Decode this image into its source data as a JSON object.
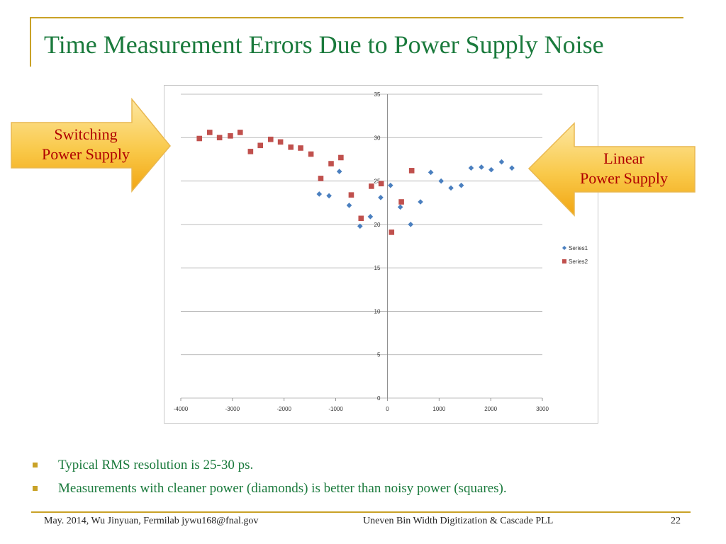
{
  "slide": {
    "title": "Time Measurement Errors Due to Power Supply Noise",
    "accent_color": "#c9a227",
    "title_color": "#1a7a3c"
  },
  "callouts": {
    "switching": {
      "line1": "Switching",
      "line2": "Power Supply"
    },
    "linear": {
      "line1": "Linear",
      "line2": "Power Supply"
    }
  },
  "bullets": [
    "Typical RMS resolution is 25-30 ps.",
    "Measurements with cleaner power (diamonds) is better than noisy power (squares)."
  ],
  "footer": {
    "left": "May. 2014, Wu Jinyuan, Fermilab jywu168@fnal.gov",
    "center": "Uneven Bin Width Digitization & Cascade PLL",
    "page": "22"
  },
  "chart_data": {
    "type": "scatter",
    "xlim": [
      -4000,
      3000
    ],
    "ylim": [
      0,
      35
    ],
    "x_ticks": [
      -4000,
      -3000,
      -2000,
      -1000,
      0,
      1000,
      2000,
      3000
    ],
    "y_ticks": [
      0,
      5,
      10,
      15,
      20,
      25,
      30,
      35
    ],
    "grid": "horizontal",
    "legend_position": "right",
    "series": [
      {
        "name": "Series1",
        "marker": "diamond",
        "color": "#4a7fbf",
        "points": [
          [
            -1320,
            23.5
          ],
          [
            -1130,
            23.3
          ],
          [
            -930,
            26.1
          ],
          [
            -740,
            22.2
          ],
          [
            -530,
            19.8
          ],
          [
            -330,
            20.9
          ],
          [
            -130,
            23.1
          ],
          [
            60,
            24.5
          ],
          [
            250,
            22.0
          ],
          [
            450,
            20.0
          ],
          [
            640,
            22.6
          ],
          [
            840,
            26.0
          ],
          [
            1040,
            25.0
          ],
          [
            1230,
            24.2
          ],
          [
            1430,
            24.5
          ],
          [
            1620,
            26.5
          ],
          [
            1820,
            26.6
          ],
          [
            2010,
            26.3
          ],
          [
            2210,
            27.2
          ],
          [
            2410,
            26.5
          ]
        ]
      },
      {
        "name": "Series2",
        "marker": "square",
        "color": "#c0504d",
        "points": [
          [
            -3640,
            29.9
          ],
          [
            -3440,
            30.6
          ],
          [
            -3250,
            30.0
          ],
          [
            -3040,
            30.2
          ],
          [
            -2850,
            30.6
          ],
          [
            -2650,
            28.4
          ],
          [
            -2460,
            29.1
          ],
          [
            -2260,
            29.8
          ],
          [
            -2070,
            29.5
          ],
          [
            -1870,
            28.9
          ],
          [
            -1680,
            28.8
          ],
          [
            -1480,
            28.1
          ],
          [
            -1290,
            25.3
          ],
          [
            -1090,
            27.0
          ],
          [
            -900,
            27.7
          ],
          [
            -700,
            23.4
          ],
          [
            -510,
            20.7
          ],
          [
            -310,
            24.4
          ],
          [
            -120,
            24.7
          ],
          [
            80,
            19.1
          ],
          [
            270,
            22.6
          ],
          [
            470,
            26.2
          ]
        ]
      }
    ]
  }
}
